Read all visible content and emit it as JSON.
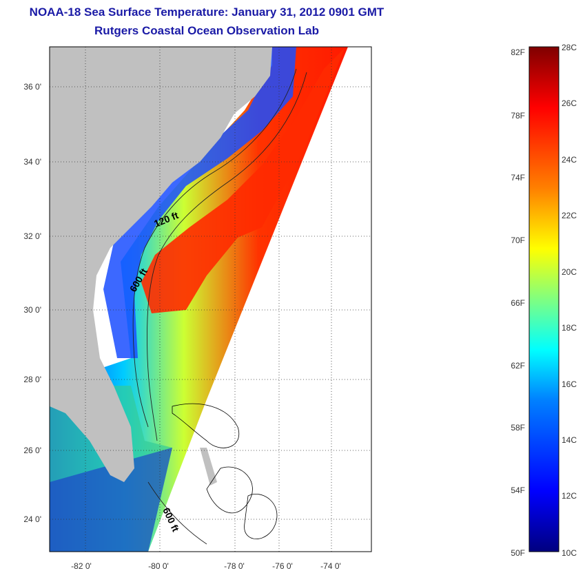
{
  "header": {
    "title": "NOAA-18 Sea Surface Temperature:  January 31, 2012 0901 GMT",
    "subtitle": "Rutgers Coastal Ocean Observation Lab"
  },
  "map": {
    "lat_ticks": [
      "36 0'",
      "34 0'",
      "32 0'",
      "30 0'",
      "28 0'",
      "26 0'",
      "24 0'"
    ],
    "lon_ticks": [
      "-82 0'",
      "-80 0'",
      "-78 0'",
      "-76 0'",
      "-74 0'"
    ],
    "contour_labels": [
      "120 ft",
      "600 ft",
      "600 ft"
    ],
    "land_color": "#c0c0c0",
    "grid": "dotted"
  },
  "colorbar": {
    "fahrenheit_labels": [
      "82F",
      "78F",
      "74F",
      "70F",
      "66F",
      "62F",
      "58F",
      "54F",
      "50F"
    ],
    "celsius_labels": [
      "28C",
      "26C",
      "24C",
      "22C",
      "20C",
      "18C",
      "16C",
      "14C",
      "12C",
      "10C"
    ],
    "colors": [
      "#00007f",
      "#0000ff",
      "#0080ff",
      "#00ffff",
      "#80ff80",
      "#ffff00",
      "#ff8000",
      "#ff0000",
      "#7f0000"
    ]
  }
}
